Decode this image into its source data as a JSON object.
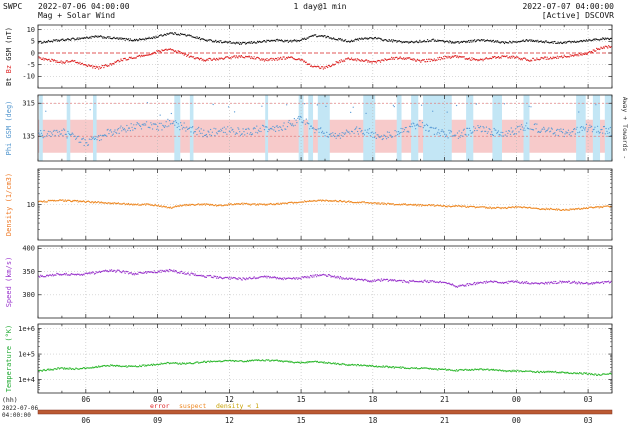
{
  "header": {
    "brand": "SWPC",
    "start_time": "2022-07-06 04:00:00",
    "subtitle": "Mag + Solar Wind",
    "resolution": "1 day@1 min",
    "end_time": "2022-07-07 04:00:00",
    "source": "[Active] DSCOVR"
  },
  "footer": {
    "x_unit": "(hh)",
    "start_date": "2022-07-06",
    "start_time": "04:00:00",
    "legend": [
      {
        "label": "error",
        "color": "#dd2222"
      },
      {
        "label": "suspect",
        "color": "#ee8822"
      },
      {
        "label": "density < 1",
        "color": "#c8a000"
      }
    ],
    "flag_strip": {
      "color": "#bb5a33",
      "border": "#803020"
    }
  },
  "chart_data": {
    "type": "line",
    "title": "Mag + Solar Wind, 1 day @ 1 min, DSCOVR (SWPC)",
    "x_axis": {
      "unit": "hours",
      "xlim": [
        4,
        28
      ],
      "major_ticks": [
        6,
        9,
        12,
        15,
        18,
        21,
        24,
        27
      ],
      "major_labels": [
        "06",
        "09",
        "12",
        "15",
        "18",
        "21",
        "00",
        "03"
      ],
      "minor_step": 1,
      "start": "2022-07-06 04:00:00",
      "end": "2022-07-07 04:00:00"
    },
    "x_hours": [
      4,
      4.5,
      5,
      5.5,
      6,
      6.5,
      7,
      7.5,
      8,
      8.5,
      9,
      9.5,
      10,
      10.5,
      11,
      11.5,
      12,
      12.5,
      13,
      13.5,
      14,
      14.5,
      15,
      15.5,
      16,
      16.5,
      17,
      17.5,
      18,
      18.5,
      19,
      19.5,
      20,
      20.5,
      21,
      21.5,
      22,
      22.5,
      23,
      23.5,
      24,
      24.5,
      25,
      25.5,
      26,
      26.5,
      27,
      27.5,
      28
    ],
    "panels": [
      {
        "id": "mag",
        "ylabel_parts": [
          {
            "text": "Bt ",
            "color": "#111111"
          },
          {
            "text": "Bz ",
            "color": "#dd2222"
          },
          {
            "text": "GSM (nT)",
            "color": "#111111"
          }
        ],
        "scale": "linear",
        "ylim": [
          -15,
          12
        ],
        "yticks": [
          10,
          5,
          0,
          -5,
          -10
        ],
        "ref_lines": [
          {
            "value": 0,
            "color": "#dd2222",
            "dash": "4 2"
          }
        ],
        "series": [
          {
            "name": "Bt",
            "color": "#161616",
            "jitter": 0.45,
            "values": [
              4.5,
              5,
              5.5,
              6,
              6.5,
              7,
              6.5,
              6,
              5.5,
              6,
              7,
              8.5,
              8,
              7,
              5.5,
              5,
              4.5,
              4,
              4.5,
              5,
              5.5,
              5,
              5.5,
              7.5,
              7,
              6,
              5,
              6,
              6.5,
              5.5,
              5,
              4.5,
              5,
              5.5,
              5,
              4.5,
              5,
              5.5,
              5,
              4.5,
              5,
              5.5,
              5,
              4.5,
              4.5,
              5,
              5.5,
              6,
              6
            ]
          },
          {
            "name": "Bz",
            "color": "#dd2222",
            "jitter": 0.55,
            "values": [
              -2,
              -3,
              -4,
              -3.5,
              -5,
              -6.5,
              -5,
              -3,
              -2,
              -1,
              0.5,
              1.5,
              0,
              -2,
              -3,
              -2.5,
              -2,
              -1.5,
              -2,
              -3,
              -2.5,
              -2,
              -3,
              -6,
              -6.5,
              -4,
              -2.5,
              -3,
              -4,
              -3,
              -2,
              -2.5,
              -3.5,
              -3,
              -2,
              -1.5,
              -2.5,
              -3,
              -2,
              -1.5,
              -2,
              -3,
              -2.5,
              -2,
              -1.5,
              -1,
              0,
              2,
              3
            ]
          }
        ]
      },
      {
        "id": "phi",
        "ylabel_parts": [
          {
            "text": "Phi GSM (deg)",
            "color": "#4f94cd"
          }
        ],
        "right_label": "Away +   Towards -",
        "scale": "linear",
        "ylim": [
          0,
          360
        ],
        "yticks": [
          315,
          135
        ],
        "bands": [
          {
            "from": 45,
            "to": 225,
            "color": "#f7caca",
            "label": "towards-sector-band"
          }
        ],
        "ref_lines": [
          {
            "value": 315,
            "color": "#e08080",
            "dash": "2 2"
          },
          {
            "value": 135,
            "color": "#e08080",
            "dash": "2 2"
          }
        ],
        "stripes": {
          "color": "#c3e6f5",
          "label": "away-interval-stripe",
          "intervals": [
            [
              4.05,
              4.2
            ],
            [
              5.2,
              5.35
            ],
            [
              6.3,
              6.45
            ],
            [
              9.7,
              9.95
            ],
            [
              10.35,
              10.5
            ],
            [
              13.5,
              13.62
            ],
            [
              14.9,
              15.1
            ],
            [
              15.3,
              15.5
            ],
            [
              15.7,
              16.2
            ],
            [
              17.6,
              18.1
            ],
            [
              19.0,
              19.2
            ],
            [
              19.6,
              19.9
            ],
            [
              20.1,
              21.3
            ],
            [
              21.9,
              22.2
            ],
            [
              23.0,
              23.4
            ],
            [
              24.3,
              24.55
            ],
            [
              26.5,
              26.9
            ],
            [
              27.2,
              27.5
            ],
            [
              27.7,
              28.0
            ]
          ]
        },
        "series": [
          {
            "name": "Phi",
            "color": "#5b9bd5",
            "jitter": 22,
            "spike_p": 0.04,
            "spike_base": 285,
            "spike_spread": 35,
            "values": [
              150,
              140,
              160,
              130,
              100,
              120,
              160,
              170,
              190,
              200,
              180,
              210,
              190,
              170,
              150,
              160,
              170,
              155,
              165,
              180,
              170,
              200,
              230,
              180,
              150,
              140,
              160,
              170,
              150,
              130,
              160,
              180,
              200,
              170,
              150,
              140,
              160,
              175,
              160,
              150,
              170,
              190,
              175,
              160,
              150,
              165,
              180,
              170,
              160
            ]
          }
        ]
      },
      {
        "id": "density",
        "ylabel_parts": [
          {
            "text": "Density (1/cm3)",
            "color": "#ee7722"
          }
        ],
        "scale": "log",
        "ylim": [
          1,
          100
        ],
        "yticks": [
          10
        ],
        "series": [
          {
            "name": "Density",
            "color": "#ee8822",
            "jitter": 0.05,
            "values": [
              12,
              12.5,
              13,
              12.5,
              12,
              11.5,
              11,
              10.5,
              10,
              10,
              9.5,
              8,
              9.5,
              10,
              10,
              9.5,
              10,
              10.5,
              10,
              10,
              10.5,
              11,
              12,
              12.5,
              13,
              12.5,
              12,
              11.5,
              11,
              10.5,
              10,
              10,
              9.5,
              9.5,
              9,
              9,
              8.5,
              8.5,
              8,
              8,
              8.5,
              8,
              7.5,
              7.5,
              7,
              7.5,
              8,
              8.5,
              9
            ]
          }
        ]
      },
      {
        "id": "speed",
        "ylabel_parts": [
          {
            "text": "Speed (km/s)",
            "color": "#9933cc"
          }
        ],
        "scale": "linear",
        "ylim": [
          250,
          405
        ],
        "yticks": [
          400,
          350,
          300
        ],
        "series": [
          {
            "name": "Speed",
            "color": "#9933cc",
            "jitter": 2.5,
            "values": [
              340,
              342,
              345,
              343,
              345,
              348,
              352,
              350,
              345,
              348,
              350,
              352,
              348,
              344,
              340,
              338,
              336,
              334,
              336,
              338,
              336,
              334,
              336,
              340,
              342,
              338,
              334,
              332,
              330,
              332,
              330,
              328,
              330,
              328,
              326,
              318,
              322,
              326,
              328,
              326,
              328,
              326,
              324,
              326,
              328,
              326,
              324,
              326,
              328
            ]
          }
        ]
      },
      {
        "id": "temperature",
        "ylabel_parts": [
          {
            "text": "Temperature (°K)",
            "color": "#22aa33"
          }
        ],
        "scale": "log",
        "ylim": [
          3000,
          1500000
        ],
        "yticks": [
          1000000,
          100000,
          10000
        ],
        "ytick_labels": [
          "1e+6",
          "1e+5",
          "1e+4"
        ],
        "series": [
          {
            "name": "Temperature",
            "color": "#2db82d",
            "jitter": 0.07,
            "values": [
              22000,
              25000,
              28000,
              26000,
              28000,
              32000,
              36000,
              34000,
              32000,
              36000,
              40000,
              45000,
              42000,
              45000,
              50000,
              52000,
              55000,
              52000,
              55000,
              58000,
              55000,
              50000,
              46000,
              50000,
              46000,
              42000,
              38000,
              36000,
              34000,
              32000,
              30000,
              28000,
              28000,
              26000,
              25000,
              23000,
              24000,
              25000,
              24000,
              22000,
              22000,
              21000,
              20000,
              20000,
              19000,
              18000,
              17000,
              15000,
              18000
            ]
          }
        ]
      }
    ]
  }
}
